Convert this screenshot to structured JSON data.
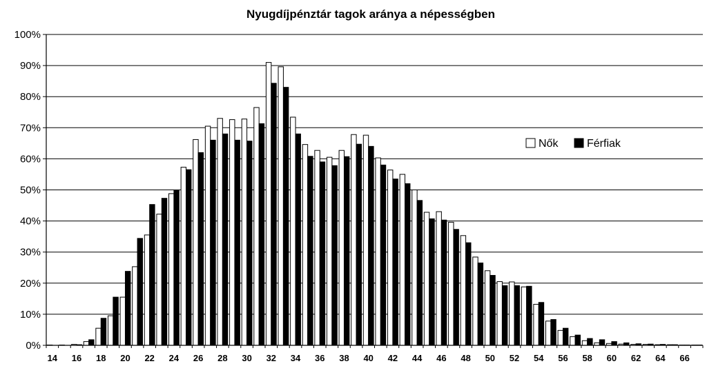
{
  "chart_data": {
    "type": "bar",
    "title": "Nyugdíjpénztár tagok aránya a népességben",
    "xlabel": "",
    "ylabel": "",
    "ylim": [
      0,
      100
    ],
    "y_ticks": [
      "0%",
      "10%",
      "20%",
      "30%",
      "40%",
      "50%",
      "60%",
      "70%",
      "80%",
      "90%",
      "100%"
    ],
    "x_tick_labels": [
      "14",
      "16",
      "18",
      "20",
      "22",
      "24",
      "26",
      "28",
      "30",
      "32",
      "34",
      "36",
      "38",
      "40",
      "42",
      "44",
      "46",
      "48",
      "50",
      "52",
      "54",
      "56",
      "58",
      "60",
      "62",
      "64",
      "66"
    ],
    "categories": [
      14,
      15,
      16,
      17,
      18,
      19,
      20,
      21,
      22,
      23,
      24,
      25,
      26,
      27,
      28,
      29,
      30,
      31,
      32,
      33,
      34,
      35,
      36,
      37,
      38,
      39,
      40,
      41,
      42,
      43,
      44,
      45,
      46,
      47,
      48,
      49,
      50,
      51,
      52,
      53,
      54,
      55,
      56,
      57,
      58,
      59,
      60,
      61,
      62,
      63,
      64,
      65,
      66,
      67
    ],
    "grid": true,
    "legend": "right",
    "series": [
      {
        "name": "Nők",
        "fill": "#ffffff",
        "values": [
          0.1,
          0.1,
          0.3,
          1.2,
          5.5,
          9.5,
          15.5,
          25.3,
          35.5,
          42.2,
          48.8,
          57.3,
          66.2,
          70.5,
          73.0,
          72.6,
          72.8,
          76.5,
          91.0,
          89.6,
          73.4,
          64.6,
          62.7,
          60.5,
          62.7,
          67.8,
          67.6,
          60.3,
          56.4,
          55.0,
          50.0,
          42.8,
          43.0,
          39.6,
          35.3,
          28.4,
          24.0,
          20.5,
          20.4,
          18.8,
          13.2,
          7.8,
          4.8,
          2.8,
          1.5,
          0.8,
          0.6,
          0.4,
          0.3,
          0.3,
          0.2,
          0.2,
          0.1,
          0.1
        ]
      },
      {
        "name": "Férfiak",
        "fill": "#000000",
        "values": [
          0.0,
          0.0,
          0.2,
          1.8,
          8.7,
          15.5,
          23.8,
          34.4,
          45.3,
          47.3,
          49.8,
          56.5,
          62.0,
          66.0,
          68.0,
          66.0,
          65.7,
          71.3,
          84.3,
          83.0,
          68.0,
          60.8,
          59.0,
          57.8,
          60.7,
          64.7,
          64.0,
          58.0,
          53.5,
          52.0,
          46.6,
          40.7,
          40.3,
          37.3,
          33.0,
          26.5,
          22.5,
          19.2,
          19.2,
          19.0,
          13.8,
          8.3,
          5.5,
          3.3,
          2.2,
          1.8,
          1.2,
          0.8,
          0.5,
          0.4,
          0.3,
          0.2,
          0.1,
          0.1
        ]
      }
    ]
  }
}
